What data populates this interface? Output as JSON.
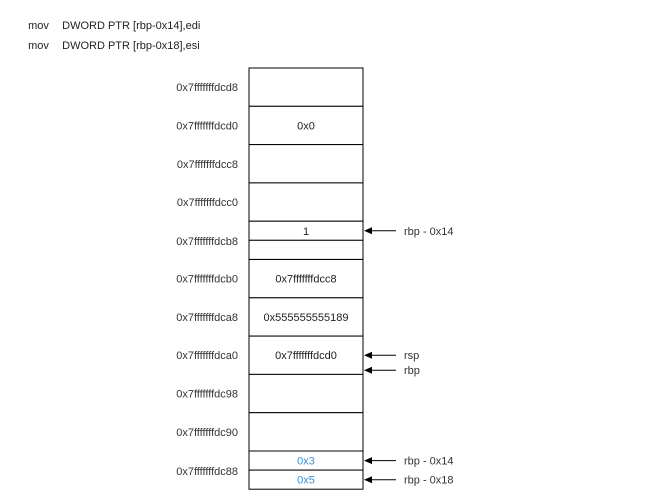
{
  "code": [
    {
      "op": "mov",
      "args": "DWORD PTR [rbp-0x14],edi"
    },
    {
      "op": "mov",
      "args": "DWORD PTR [rbp-0x18],esi"
    }
  ],
  "stack": {
    "slots": [
      {
        "address": "0x7fffffffdcd8",
        "cells": [
          ""
        ]
      },
      {
        "address": "0x7fffffffdcd0",
        "cells": [
          "0x0"
        ]
      },
      {
        "address": "0x7fffffffdcc8",
        "cells": [
          ""
        ]
      },
      {
        "address": "0x7fffffffdcc0",
        "cells": [
          ""
        ]
      },
      {
        "address": "0x7fffffffdcb8",
        "cells": [
          "1",
          ""
        ]
      },
      {
        "address": "0x7fffffffdcb0",
        "cells": [
          "0x7fffffffdcc8"
        ]
      },
      {
        "address": "0x7fffffffdca8",
        "cells": [
          "0x555555555189"
        ]
      },
      {
        "address": "0x7fffffffdca0",
        "cells": [
          "0x7fffffffdcd0"
        ]
      },
      {
        "address": "0x7fffffffdc98",
        "cells": [
          ""
        ]
      },
      {
        "address": "0x7fffffffdc90",
        "cells": [
          ""
        ]
      },
      {
        "address": "0x7fffffffdc88",
        "cells": [
          "0x3",
          "0x5"
        ],
        "value_color": "#3c8fd6"
      }
    ],
    "pointers": [
      {
        "label": "rbp - 0x14",
        "slot": 4,
        "cell": 0
      },
      {
        "label": "rsp",
        "slot": 7,
        "cell": 0
      },
      {
        "label": "rbp",
        "slot": 7,
        "cell": 0,
        "below": true
      },
      {
        "label": "rbp - 0x14",
        "slot": 10,
        "cell": 0
      },
      {
        "label": "rbp - 0x18",
        "slot": 10,
        "cell": 1
      }
    ]
  }
}
